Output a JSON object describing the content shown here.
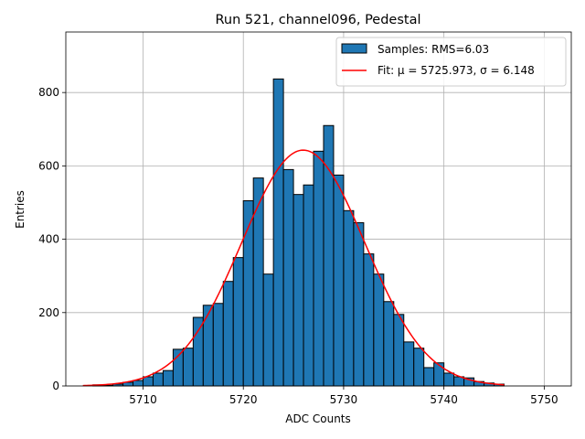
{
  "chart_data": {
    "type": "histogram",
    "title": "Run 521, channel096, Pedestal",
    "xlabel": "ADC Counts",
    "ylabel": "Entries",
    "xlim": [
      5702.3,
      5752.7
    ],
    "ylim": [
      0,
      965
    ],
    "xticks": [
      5710,
      5720,
      5730,
      5740,
      5750
    ],
    "yticks": [
      0,
      200,
      400,
      600,
      800
    ],
    "grid": true,
    "bin_start": 5705,
    "bin_width": 1,
    "bar_color": "#1f77b4",
    "bar_edge_color": "#000000",
    "counts": [
      3,
      2,
      5,
      10,
      15,
      25,
      35,
      42,
      100,
      103,
      187,
      220,
      225,
      285,
      350,
      505,
      567,
      305,
      837,
      590,
      522,
      548,
      640,
      710,
      575,
      478,
      445,
      360,
      305,
      230,
      195,
      120,
      103,
      50,
      63,
      35,
      25,
      22,
      12,
      8,
      5
    ],
    "fit": {
      "mu": 5725.973,
      "sigma": 6.148,
      "amplitude": 643,
      "x_range": [
        5704,
        5746
      ],
      "color": "#ff0000"
    },
    "legend": {
      "position": "upper-right",
      "entries": [
        {
          "label": "Samples: RMS=6.03",
          "kind": "patch",
          "color": "#1f77b4"
        },
        {
          "label": "Fit: μ = 5725.973, σ = 6.148",
          "kind": "line",
          "color": "#ff0000"
        }
      ]
    }
  }
}
